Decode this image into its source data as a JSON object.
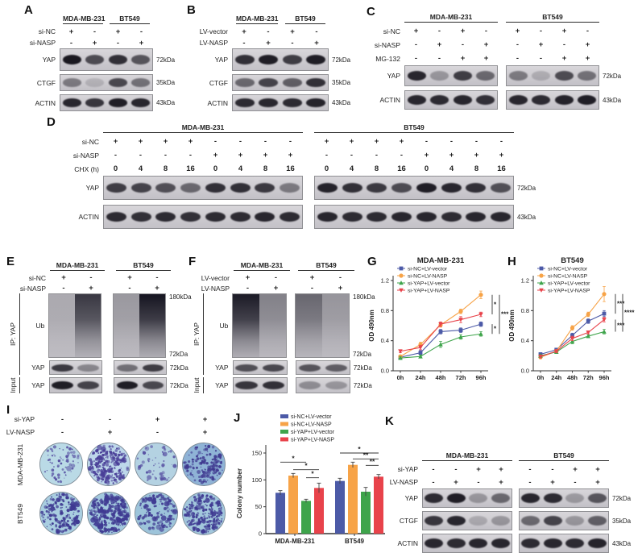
{
  "figure": {
    "panels": {
      "A": {
        "letter": "A",
        "groups": [
          "MDA-MB-231",
          "BT549"
        ],
        "conditions": [
          {
            "name": "si-NC",
            "vals": [
              "+",
              "-",
              "+",
              "-"
            ]
          },
          {
            "name": "si-NASP",
            "vals": [
              "-",
              "+",
              "-",
              "+"
            ]
          }
        ],
        "rows": [
          {
            "name": "YAP",
            "kda": "72kDa",
            "bands": [
              0.98,
              0.7,
              0.85,
              0.65
            ]
          },
          {
            "name": "CTGF",
            "kda": "35kDa",
            "bands": [
              0.45,
              0.15,
              0.72,
              0.5
            ]
          },
          {
            "name": "ACTIN",
            "kda": "43kDa",
            "bands": [
              0.9,
              0.82,
              0.95,
              0.9
            ]
          }
        ]
      },
      "B": {
        "letter": "B",
        "groups": [
          "MDA-MB-231",
          "BT549"
        ],
        "conditions": [
          {
            "name": "LV-vector",
            "vals": [
              "+",
              "-",
              "+",
              "-"
            ]
          },
          {
            "name": "LV-NASP",
            "vals": [
              "-",
              "+",
              "-",
              "+"
            ]
          }
        ],
        "rows": [
          {
            "name": "YAP",
            "kda": "72kDa",
            "bands": [
              0.85,
              0.95,
              0.78,
              0.95
            ]
          },
          {
            "name": "CTGF",
            "kda": "35kDa",
            "bands": [
              0.55,
              0.75,
              0.6,
              0.85
            ]
          },
          {
            "name": "ACTIN",
            "kda": "43kDa",
            "bands": [
              0.88,
              0.9,
              0.88,
              0.92
            ]
          }
        ]
      },
      "C": {
        "letter": "C",
        "groups": [
          "MDA-MB-231",
          "BT549"
        ],
        "conditions": [
          {
            "name": "si-NC",
            "vals": [
              "+",
              "-",
              "+",
              "-",
              "+",
              "-",
              "+",
              "-"
            ]
          },
          {
            "name": "si-NASP",
            "vals": [
              "-",
              "+",
              "-",
              "+",
              "-",
              "+",
              "-",
              "+"
            ]
          },
          {
            "name": "MG-132",
            "vals": [
              "-",
              "-",
              "+",
              "+",
              "-",
              "-",
              "+",
              "+"
            ]
          }
        ],
        "rows": [
          {
            "name": "YAP",
            "kda": "72kDa",
            "bands": [
              0.9,
              0.3,
              0.78,
              0.55,
              0.45,
              0.18,
              0.7,
              0.5
            ]
          },
          {
            "name": "ACTIN",
            "kda": "43kDa",
            "bands": [
              0.9,
              0.88,
              0.9,
              0.85,
              0.9,
              0.88,
              0.92,
              0.95
            ]
          }
        ]
      },
      "D": {
        "letter": "D",
        "groups": [
          "MDA-MB-231",
          "BT549"
        ],
        "conditions": [
          {
            "name": "si-NC",
            "vals": [
              "+",
              "+",
              "+",
              "+",
              "-",
              "-",
              "-",
              "-",
              "+",
              "+",
              "+",
              "+",
              "-",
              "-",
              "-",
              "-"
            ]
          },
          {
            "name": "si-NASP",
            "vals": [
              "-",
              "-",
              "-",
              "-",
              "+",
              "+",
              "+",
              "+",
              "-",
              "-",
              "-",
              "-",
              "+",
              "+",
              "+",
              "+"
            ]
          },
          {
            "name": "CHX (h)",
            "vals": [
              "0",
              "4",
              "8",
              "16",
              "0",
              "4",
              "8",
              "16",
              "0",
              "4",
              "8",
              "16",
              "0",
              "4",
              "8",
              "16"
            ]
          }
        ],
        "rows": [
          {
            "name": "YAP",
            "kda": "72kDa",
            "bands": [
              0.78,
              0.75,
              0.68,
              0.55,
              0.85,
              0.85,
              0.8,
              0.45,
              0.92,
              0.85,
              0.8,
              0.7,
              0.95,
              0.9,
              0.85,
              0.68
            ]
          },
          {
            "name": "ACTIN",
            "kda": "43kDa",
            "bands": [
              0.88,
              0.85,
              0.88,
              0.85,
              0.88,
              0.88,
              0.9,
              0.88,
              0.9,
              0.88,
              0.88,
              0.9,
              0.9,
              0.88,
              0.9,
              0.9
            ]
          }
        ]
      },
      "E": {
        "letter": "E",
        "groups": [
          "MDA-MB-231",
          "BT549"
        ],
        "ip_label": "IP: YAP",
        "input_label": "Input",
        "conditions": [
          {
            "name": "si-NC",
            "vals": [
              "+",
              "-",
              "+",
              "-"
            ]
          },
          {
            "name": "si-NASP",
            "vals": [
              "-",
              "+",
              "-",
              "+"
            ]
          }
        ],
        "rows": [
          {
            "name": "Ub",
            "kda_top": "180kDa",
            "kda_bottom": "72kDa",
            "smear": true,
            "bands": [
              0.22,
              0.78,
              0.3,
              0.95
            ]
          },
          {
            "name": "YAP",
            "kda": "72kDa",
            "bands": [
              0.8,
              0.38,
              0.5,
              0.78
            ]
          },
          {
            "name": "YAP",
            "kda": "72kDa",
            "bands": [
              0.95,
              0.75,
              0.95,
              0.72
            ]
          }
        ]
      },
      "F": {
        "letter": "F",
        "groups": [
          "MDA-MB-231",
          "BT549"
        ],
        "ip_label": "IP: YAP",
        "input_label": "Input",
        "conditions": [
          {
            "name": "LV-vector",
            "vals": [
              "+",
              "-",
              "+",
              "-"
            ]
          },
          {
            "name": "LV-NASP",
            "vals": [
              "-",
              "+",
              "-",
              "+"
            ]
          }
        ],
        "rows": [
          {
            "name": "Ub",
            "kda_top": "180kDa",
            "kda_bottom": "72kDa",
            "smear": true,
            "bands": [
              0.92,
              0.42,
              0.55,
              0.32
            ]
          },
          {
            "name": "YAP",
            "kda": "72kDa",
            "bands": [
              0.68,
              0.72,
              0.65,
              0.6
            ]
          },
          {
            "name": "YAP",
            "kda": "72kDa",
            "bands": [
              0.82,
              0.85,
              0.35,
              0.3
            ]
          }
        ]
      },
      "G": {
        "letter": "G"
      },
      "H": {
        "letter": "H"
      },
      "I": {
        "letter": "I",
        "conditions": [
          {
            "name": "si-YAP",
            "vals": [
              "-",
              "-",
              "+",
              "+"
            ]
          },
          {
            "name": "LV-NASP",
            "vals": [
              "-",
              "+",
              "-",
              "+"
            ]
          }
        ],
        "rows": [
          {
            "name": "MDA-MB-231",
            "dishes": [
              {
                "density": 70,
                "base": "#badae6",
                "dot": "#5a54a4"
              },
              {
                "density": 230,
                "base": "#bdd7ea",
                "dot": "#4a3f98"
              },
              {
                "density": 55,
                "base": "#b4d2e2",
                "dot": "#5a54a4"
              },
              {
                "density": 150,
                "base": "#8fb3d6",
                "dot": "#403a90"
              }
            ]
          },
          {
            "name": "BT549",
            "dishes": [
              {
                "density": 170,
                "base": "#a9cee0",
                "dot": "#3f3a92"
              },
              {
                "density": 290,
                "base": "#a3c9de",
                "dot": "#3f3a92"
              },
              {
                "density": 130,
                "base": "#9dc4da",
                "dot": "#3f3a92"
              },
              {
                "density": 230,
                "base": "#a2c7dc",
                "dot": "#3f3a92"
              }
            ]
          }
        ]
      },
      "J": {
        "letter": "J"
      },
      "K": {
        "letter": "K",
        "groups": [
          "MDA-MB-231",
          "BT549"
        ],
        "conditions": [
          {
            "name": "si-YAP",
            "vals": [
              "-",
              "-",
              "+",
              "+",
              "-",
              "-",
              "+",
              "+"
            ]
          },
          {
            "name": "LV-NASP",
            "vals": [
              "-",
              "+",
              "-",
              "+",
              "-",
              "+",
              "-",
              "+"
            ]
          }
        ],
        "rows": [
          {
            "name": "YAP",
            "kda": "72kDa",
            "bands": [
              0.88,
              0.95,
              0.3,
              0.55,
              0.9,
              0.88,
              0.28,
              0.65
            ]
          },
          {
            "name": "CTGF",
            "kda": "35kDa",
            "bands": [
              0.82,
              0.9,
              0.2,
              0.3,
              0.55,
              0.75,
              0.3,
              0.6
            ]
          },
          {
            "name": "ACTIN",
            "kda": "43kDa",
            "bands": [
              0.9,
              0.88,
              0.9,
              0.9,
              0.88,
              0.9,
              0.88,
              0.92
            ]
          }
        ]
      }
    }
  },
  "chart_data": [
    {
      "panel": "G",
      "type": "line",
      "title": "MDA-MB-231",
      "xlabel": "",
      "ylabel": "OD 490nm",
      "x": [
        "0h",
        "24h",
        "48h",
        "72h",
        "96h"
      ],
      "ylim": [
        0,
        1.2
      ],
      "yticks": [
        "0.0",
        "0.4",
        "0.8",
        "1.2"
      ],
      "legend_position": "top-left-inside",
      "series": [
        {
          "name": "si-NC+LV-vector",
          "color": "#4c5aa7",
          "marker": "square",
          "values": [
            0.18,
            0.24,
            0.52,
            0.54,
            0.62
          ],
          "errors": [
            0.02,
            0.03,
            0.03,
            0.03,
            0.03
          ]
        },
        {
          "name": "si-NC+LV-NASP",
          "color": "#f7a347",
          "marker": "circle",
          "values": [
            0.19,
            0.35,
            0.61,
            0.79,
            1.01
          ],
          "errors": [
            0.02,
            0.03,
            0.03,
            0.03,
            0.05
          ]
        },
        {
          "name": "si-YAP+LV-vector",
          "color": "#3ea44b",
          "marker": "triangle",
          "values": [
            0.17,
            0.19,
            0.35,
            0.45,
            0.49
          ],
          "errors": [
            0.02,
            0.02,
            0.04,
            0.03,
            0.03
          ]
        },
        {
          "name": "si-YAP+LV-NASP",
          "color": "#e8434b",
          "marker": "triangle-down",
          "values": [
            0.26,
            0.31,
            0.62,
            0.68,
            0.75
          ],
          "errors": [
            0.02,
            0.03,
            0.03,
            0.04,
            0.03
          ]
        }
      ],
      "significance": [
        {
          "a": 1,
          "b": 3,
          "label": "*",
          "level": 0
        },
        {
          "a": 0,
          "b": 2,
          "label": "*",
          "level": 0
        },
        {
          "a": 1,
          "b": 2,
          "label": "***",
          "level": 1
        }
      ]
    },
    {
      "panel": "H",
      "type": "line",
      "title": "BT549",
      "xlabel": "",
      "ylabel": "OD 490nm",
      "x": [
        "0h",
        "24h",
        "48h",
        "72h",
        "96h"
      ],
      "ylim": [
        0,
        1.2
      ],
      "yticks": [
        "0.0",
        "0.4",
        "0.8",
        "1.2"
      ],
      "legend_position": "top-left-inside",
      "series": [
        {
          "name": "si-NC+LV-vector",
          "color": "#4c5aa7",
          "marker": "square",
          "values": [
            0.22,
            0.28,
            0.47,
            0.66,
            0.76
          ],
          "errors": [
            0.02,
            0.02,
            0.03,
            0.03,
            0.04
          ]
        },
        {
          "name": "si-NC+LV-NASP",
          "color": "#f7a347",
          "marker": "circle",
          "values": [
            0.18,
            0.26,
            0.57,
            0.75,
            1.02
          ],
          "errors": [
            0.02,
            0.02,
            0.03,
            0.03,
            0.1
          ]
        },
        {
          "name": "si-YAP+LV-vector",
          "color": "#3ea44b",
          "marker": "triangle",
          "values": [
            0.2,
            0.25,
            0.39,
            0.46,
            0.52
          ],
          "errors": [
            0.02,
            0.02,
            0.03,
            0.02,
            0.03
          ]
        },
        {
          "name": "si-YAP+LV-NASP",
          "color": "#e8434b",
          "marker": "triangle-down",
          "values": [
            0.19,
            0.26,
            0.43,
            0.51,
            0.68
          ],
          "errors": [
            0.02,
            0.02,
            0.03,
            0.02,
            0.03
          ]
        }
      ],
      "significance": [
        {
          "a": 1,
          "b": 0,
          "label": "***",
          "level": 0
        },
        {
          "a": 3,
          "b": 2,
          "label": "***",
          "level": 0
        },
        {
          "a": 1,
          "b": 2,
          "label": "****",
          "level": 1
        }
      ]
    },
    {
      "panel": "J",
      "type": "bar",
      "title": "",
      "xlabel": "",
      "ylabel": "Colony number",
      "categories": [
        "MDA-MB-231",
        "BT549"
      ],
      "ylim": [
        0,
        150
      ],
      "yticks": [
        "0",
        "50",
        "100",
        "150"
      ],
      "legend_position": "top-left",
      "series": [
        {
          "name": "si-NC+LV-vector",
          "color": "#4c5aa7",
          "values": [
            76,
            98
          ],
          "errors": [
            4,
            5
          ]
        },
        {
          "name": "si-NC+LV-NASP",
          "color": "#f7a347",
          "values": [
            108,
            128
          ],
          "errors": [
            4,
            5
          ]
        },
        {
          "name": "si-YAP+LV-vector",
          "color": "#3ea44b",
          "values": [
            61,
            78
          ],
          "errors": [
            3,
            8
          ]
        },
        {
          "name": "si-YAP+LV-NASP",
          "color": "#e8434b",
          "values": [
            85,
            106
          ],
          "errors": [
            9,
            4
          ]
        }
      ],
      "significance": {
        "MDA-MB-231": [
          {
            "a": 0,
            "b": 2,
            "label": "*",
            "h": 133
          },
          {
            "a": 1,
            "b": 3,
            "label": "*",
            "h": 119
          },
          {
            "a": 2,
            "b": 3,
            "label": "*",
            "h": 104
          }
        ],
        "BT549": [
          {
            "a": 0,
            "b": 3,
            "label": "*",
            "h": 150
          },
          {
            "a": 1,
            "b": 3,
            "label": "**",
            "h": 139
          },
          {
            "a": 2,
            "b": 3,
            "label": "**",
            "h": 127
          }
        ]
      }
    }
  ]
}
